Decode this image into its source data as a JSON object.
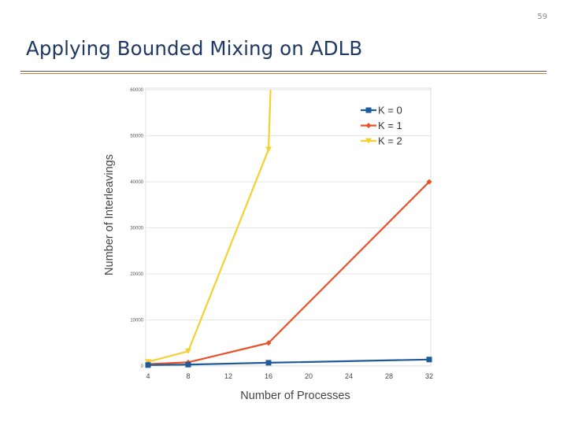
{
  "slide": {
    "number": "59",
    "title": "Applying Bounded Mixing on ADLB"
  },
  "chart_data": {
    "type": "line",
    "title": "",
    "xlabel": "Number of Processes",
    "ylabel": "Number of Interleavings",
    "x_ticks": [
      4,
      8,
      12,
      16,
      20,
      24,
      28,
      32
    ],
    "y_ticks": [
      0,
      10000,
      20000,
      30000,
      40000,
      50000,
      60000
    ],
    "xlim": [
      4,
      32
    ],
    "ylim": [
      0,
      60000
    ],
    "grid": "horizontal",
    "legend_position": "top-right",
    "series": [
      {
        "name": "K = 0",
        "color": "#1f5b98",
        "marker": "square",
        "x": [
          4,
          8,
          16,
          32
        ],
        "y": [
          200,
          300,
          700,
          1400
        ]
      },
      {
        "name": "K = 1",
        "color": "#e8522a",
        "marker": "diamond",
        "x": [
          4,
          8,
          16,
          32
        ],
        "y": [
          400,
          800,
          5000,
          40000
        ]
      },
      {
        "name": "K = 2",
        "color": "#f5d033",
        "marker": "triangle-down",
        "x": [
          4,
          8,
          16,
          16.2
        ],
        "y": [
          900,
          3200,
          47000,
          60000
        ]
      }
    ]
  }
}
